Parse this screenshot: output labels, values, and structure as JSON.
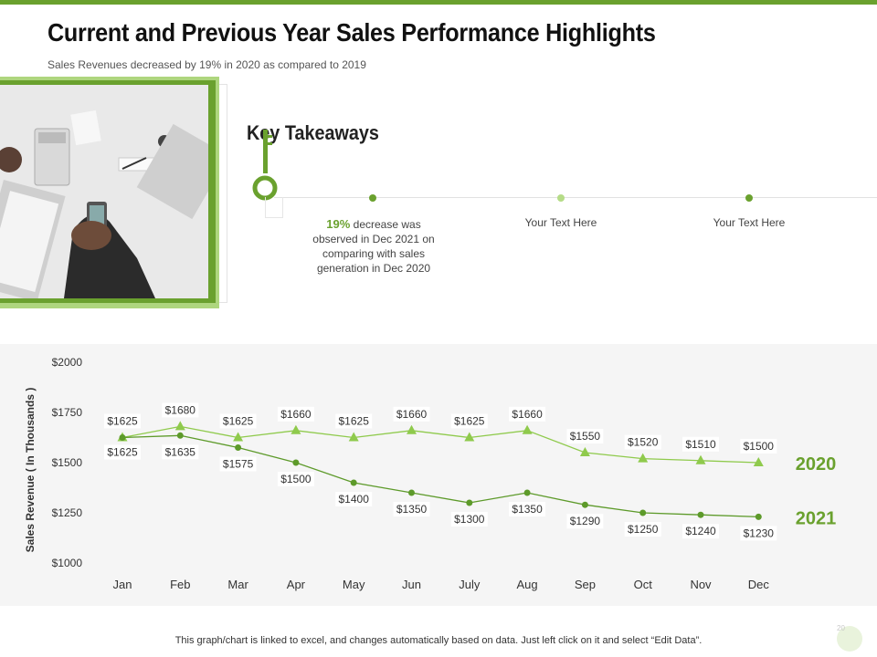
{
  "header": {
    "title": "Current and Previous Year Sales Performance Highlights",
    "subtitle": "Sales Revenues decreased by 19% in 2020 as compared to 2019"
  },
  "takeaways": {
    "title": "Key Takeaways",
    "items": [
      {
        "highlight": "19%",
        "text": " decrease was observed in Dec 2021 on comparing with sales generation in Dec 2020"
      },
      {
        "text": "Your Text Here"
      },
      {
        "text": "Your Text Here"
      }
    ]
  },
  "colors": {
    "accent": "#6aa12e",
    "light_accent": "#aed67e",
    "series_2020": "#8fca4c",
    "series_2021": "#5d9a2a"
  },
  "chart_data": {
    "type": "line",
    "title": "",
    "xlabel": "",
    "ylabel": "Sales Revenue ( In Thousands )",
    "ylim": [
      1000,
      2000
    ],
    "yticks": [
      2000,
      1750,
      1500,
      1250,
      1000
    ],
    "ytick_labels": [
      "$2000",
      "$1750",
      "$1500",
      "$1250",
      "$1000"
    ],
    "categories": [
      "Jan",
      "Feb",
      "Mar",
      "Apr",
      "May",
      "Jun",
      "July",
      "Aug",
      "Sep",
      "Oct",
      "Nov",
      "Dec"
    ],
    "grid": false,
    "series": [
      {
        "name": "2020",
        "marker": "triangle",
        "values": [
          1625,
          1680,
          1625,
          1660,
          1625,
          1660,
          1625,
          1660,
          1550,
          1520,
          1510,
          1500
        ],
        "labels": [
          "$1625",
          "$1680",
          "$1625",
          "$1660",
          "$1625",
          "$1660",
          "$1625",
          "$1660",
          "$1550",
          "$1520",
          "$1510",
          "$1500"
        ]
      },
      {
        "name": "2021",
        "marker": "circle",
        "values": [
          1625,
          1635,
          1575,
          1500,
          1400,
          1350,
          1300,
          1350,
          1290,
          1250,
          1240,
          1230
        ],
        "labels": [
          "$1625",
          "$1635",
          "$1575",
          "$1500",
          "$1400",
          "$1350",
          "$1300",
          "$1350",
          "$1290",
          "$1250",
          "$1240",
          "$1230"
        ]
      }
    ]
  },
  "footer": {
    "note": "This graph/chart is linked to excel, and changes automatically based on data. Just left click on it and select “Edit Data”.",
    "page_number": "20"
  }
}
